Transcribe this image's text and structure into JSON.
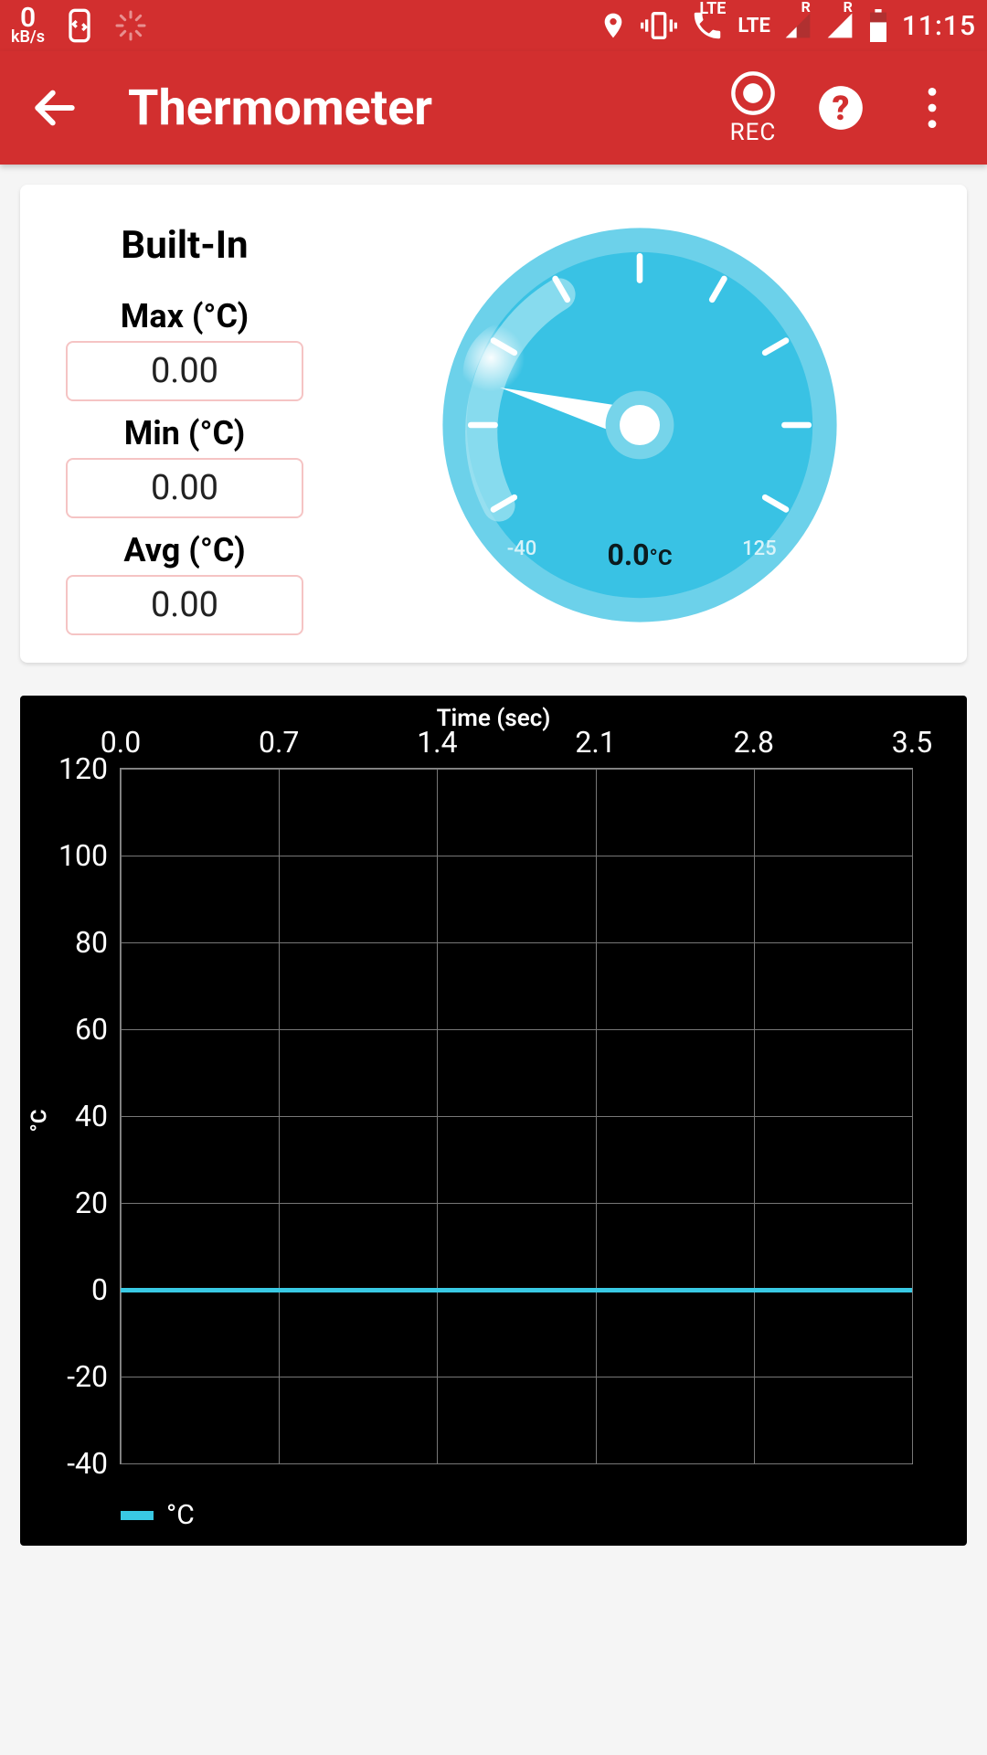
{
  "status": {
    "kb_value": "0",
    "kb_unit": "kB/s",
    "lte1": "LTE",
    "lte2": "LTE",
    "r1": "R",
    "r2": "R",
    "time": "11:15"
  },
  "appbar": {
    "title": "Thermometer",
    "rec_label": "REC",
    "accent": "#d22f2f"
  },
  "sensor": {
    "name": "Built-In",
    "max_label": "Max (°C)",
    "max_value": "0.00",
    "min_label": "Min (°C)",
    "min_value": "0.00",
    "avg_label": "Avg (°C)",
    "avg_value": "0.00",
    "box_border": "#f5c4c4"
  },
  "gauge": {
    "type": "gauge",
    "min": -40,
    "max": 125,
    "min_label": "-40",
    "max_label": "125",
    "value_text": "0.0",
    "unit": "°C",
    "current_deg_from_left_horizontal": 15,
    "face_color": "#39c2e4",
    "rim_color": "#6cd1ea",
    "needle_color": "#ffffff",
    "tick_color": "#ffffff",
    "hub_outer": "#76d4ea",
    "hub_inner": "#ffffff"
  },
  "chart": {
    "type": "line",
    "x_title": "Time (sec)",
    "y_title": "°C",
    "x_ticks": [
      "0.0",
      "0.7",
      "1.4",
      "2.1",
      "2.8",
      "3.5"
    ],
    "y_min": -40,
    "y_max": 120,
    "y_ticks": [
      120,
      100,
      80,
      60,
      40,
      20,
      0,
      -20,
      -40
    ],
    "grid_color": "#777777",
    "background": "#000000",
    "series": {
      "label": "°C",
      "color": "#39c9e4",
      "value": 0
    }
  }
}
